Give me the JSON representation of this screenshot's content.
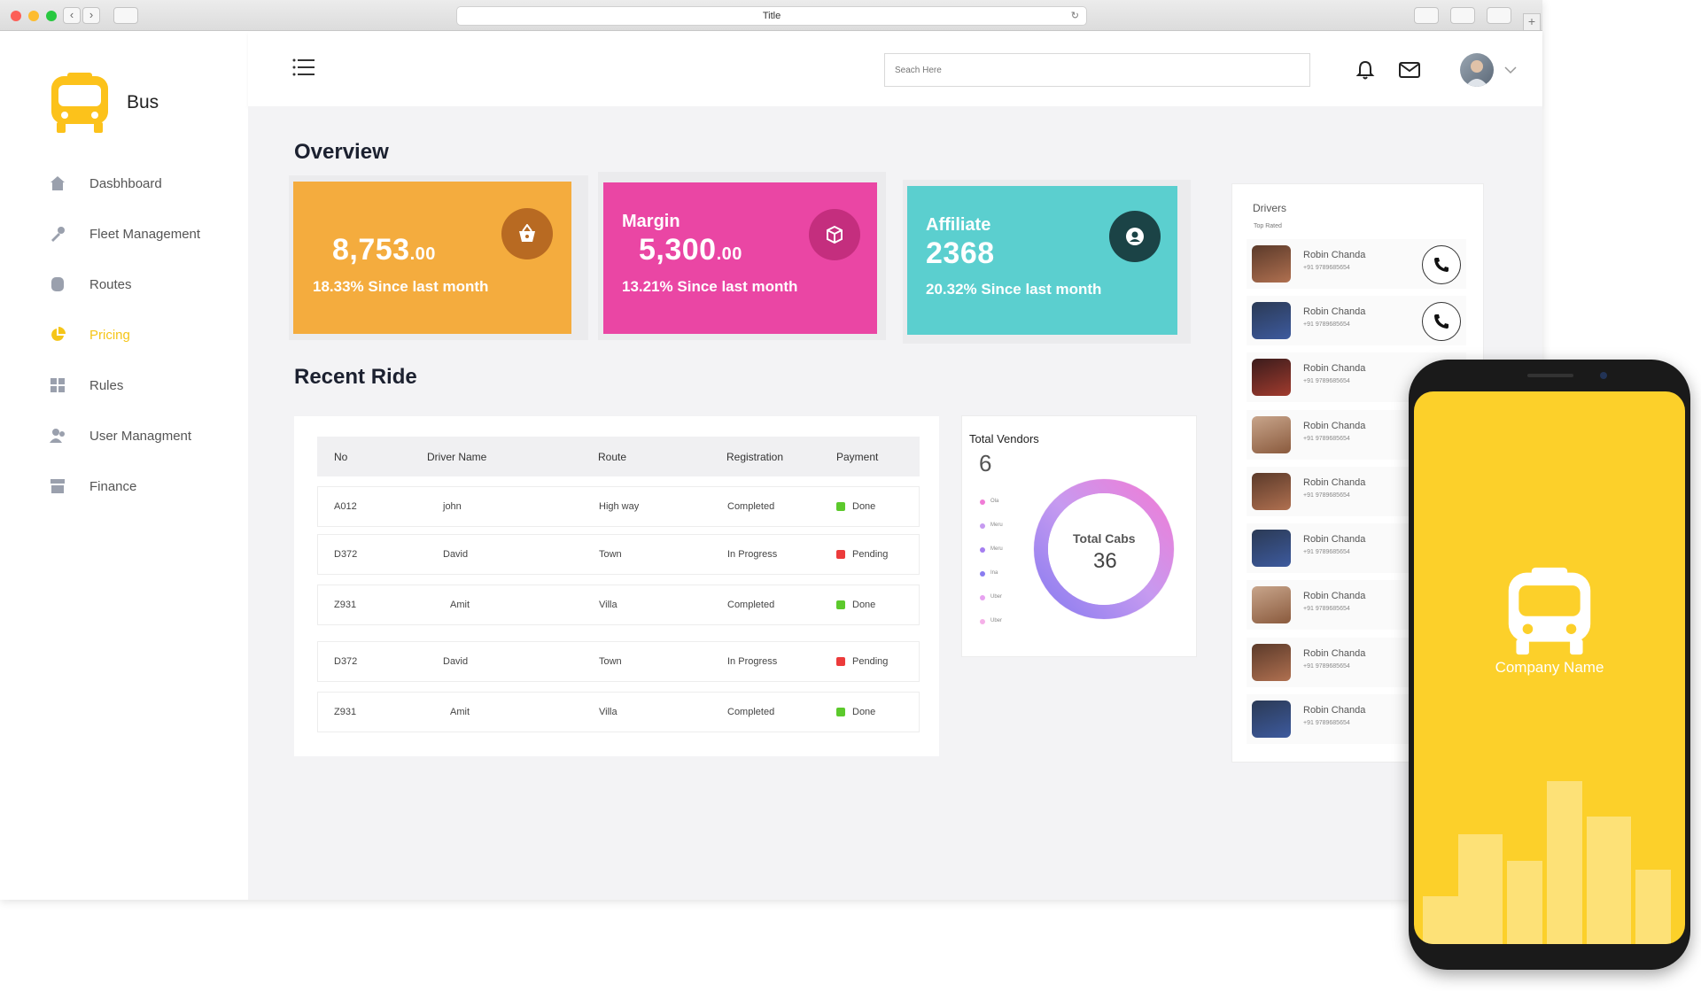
{
  "browser": {
    "title": "Title"
  },
  "app": {
    "brand": "Bus"
  },
  "sidebar": {
    "items": [
      {
        "label": "Dasbhboard",
        "icon": "home-icon",
        "active": false
      },
      {
        "label": "Fleet Management",
        "icon": "tools-icon",
        "active": false
      },
      {
        "label": "Routes",
        "icon": "routes-icon",
        "active": false
      },
      {
        "label": "Pricing",
        "icon": "pie-chart-icon",
        "active": true
      },
      {
        "label": "Rules",
        "icon": "grid-icon",
        "active": false
      },
      {
        "label": "User Managment",
        "icon": "users-icon",
        "active": false
      },
      {
        "label": "Finance",
        "icon": "store-icon",
        "active": false
      }
    ]
  },
  "header": {
    "search_placeholder": "Seach Here"
  },
  "overview": {
    "title": "Overview",
    "cards": [
      {
        "label": "",
        "value": "8,753",
        "decimals": ".00",
        "sub": "18.33% Since last month",
        "color": "#f4ac3e",
        "icon": "basket-icon"
      },
      {
        "label": "Margin",
        "value": "5,300",
        "decimals": ".00",
        "sub": "13.21% Since last month",
        "color": "#ea46a4",
        "icon": "cube-icon"
      },
      {
        "label": "Affiliate",
        "value": "2368",
        "decimals": "",
        "sub": "20.32% Since last month",
        "color": "#5bcfcf",
        "icon": "user-circle-icon"
      }
    ]
  },
  "recent_ride": {
    "title": "Recent Ride",
    "columns": [
      "No",
      "Driver Name",
      "Route",
      "Registration",
      "Payment"
    ],
    "rows": [
      {
        "no": "A012",
        "driver": "john",
        "route": "High way",
        "registration": "Completed",
        "payment": "Done",
        "status_color": "#5cc92c"
      },
      {
        "no": "D372",
        "driver": "David",
        "route": "Town",
        "registration": "In Progress",
        "payment": "Pending",
        "status_color": "#ec3b3b"
      },
      {
        "no": "Z931",
        "driver": "Amit",
        "route": "Villa",
        "registration": "Completed",
        "payment": "Done",
        "status_color": "#5cc92c"
      },
      {
        "no": "D372",
        "driver": "David",
        "route": "Town",
        "registration": "In Progress",
        "payment": "Pending",
        "status_color": "#ec3b3b"
      },
      {
        "no": "Z931",
        "driver": "Amit",
        "route": "Villa",
        "registration": "Completed",
        "payment": "Done",
        "status_color": "#5cc92c"
      }
    ]
  },
  "vendors": {
    "title": "Total Vendors",
    "count": "6",
    "center_label": "Total Cabs",
    "center_value": "36",
    "legend": [
      "Ola",
      "Meru",
      "Meru",
      "Ina",
      "Uber",
      "Uber"
    ],
    "legend_colors": [
      "#f07cd6",
      "#c69af0",
      "#a57ef0",
      "#8a7cf0",
      "#e7a2f0",
      "#f5b0e8"
    ]
  },
  "drivers": {
    "title": "Drivers",
    "subtitle": "Top Rated",
    "list": [
      {
        "name": "Robin Chanda",
        "phone": "+91 9789685654"
      },
      {
        "name": "Robin Chanda",
        "phone": "+91 9789685654"
      },
      {
        "name": "Robin Chanda",
        "phone": "+91 9789685654"
      },
      {
        "name": "Robin Chanda",
        "phone": "+91 9789685654"
      },
      {
        "name": "Robin Chanda",
        "phone": "+91 9789685654"
      },
      {
        "name": "Robin Chanda",
        "phone": "+91 9789685654"
      },
      {
        "name": "Robin Chanda",
        "phone": "+91 9789685654"
      },
      {
        "name": "Robin Chanda",
        "phone": "+91 9789685654"
      },
      {
        "name": "Robin Chanda",
        "phone": "+91 9789685654"
      }
    ]
  },
  "phone_mockup": {
    "company": "Company Name",
    "color": "#fcd02a"
  }
}
